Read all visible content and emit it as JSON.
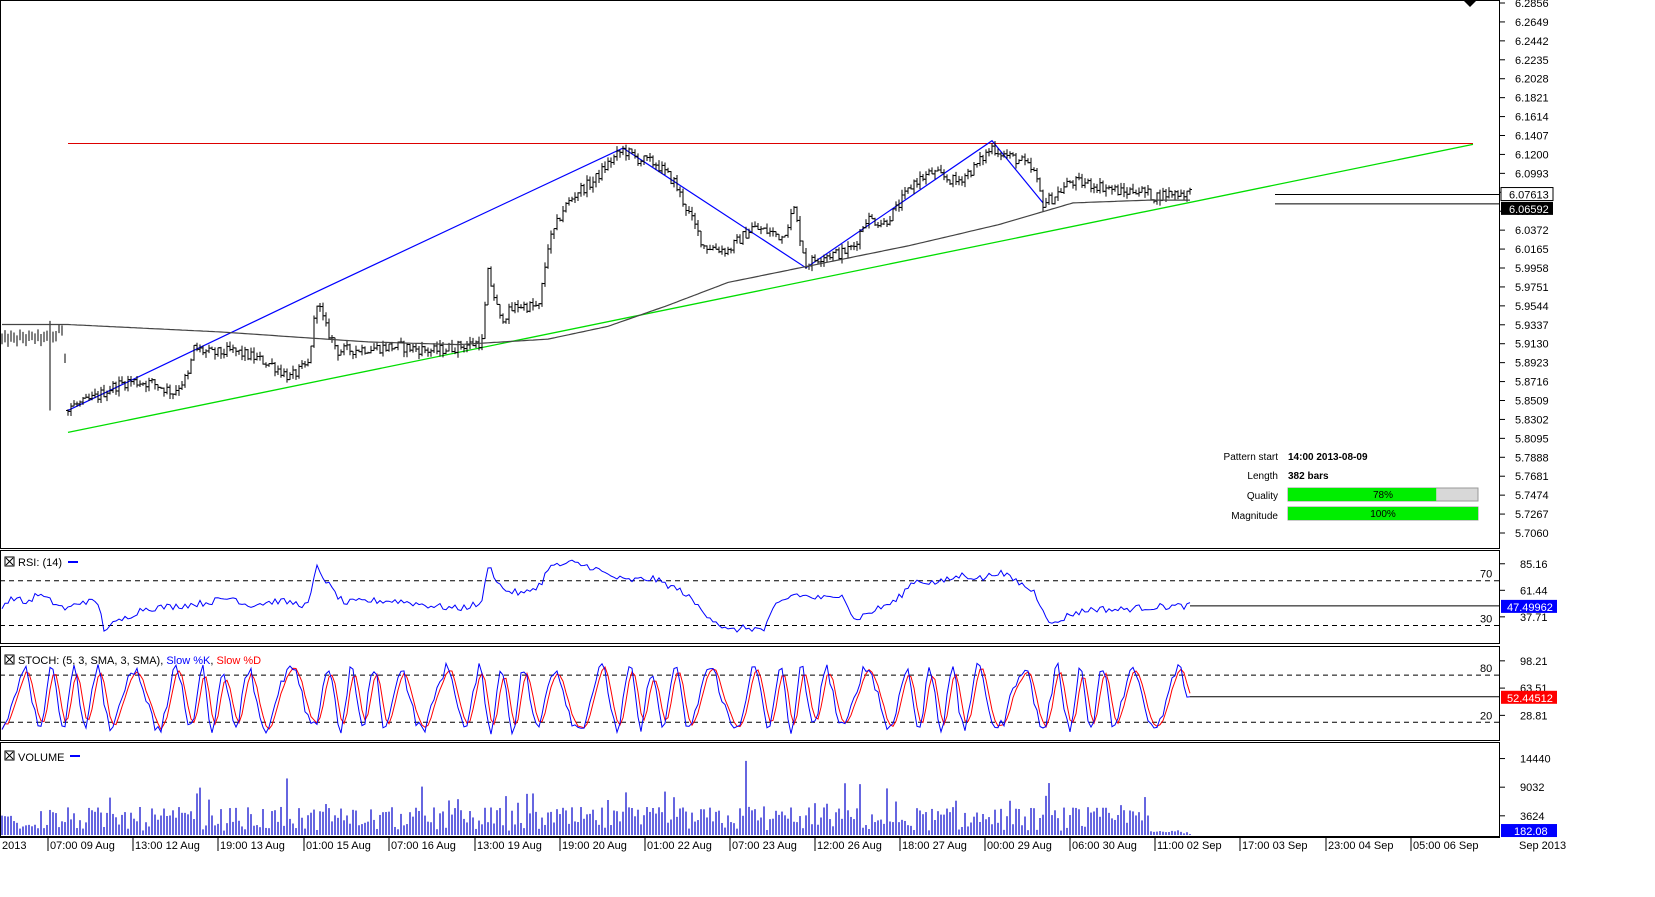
{
  "chart_data": {
    "type": "candlestick-pattern",
    "price_axis": {
      "ticks": [
        "6.2856",
        "6.2649",
        "6.2442",
        "6.2235",
        "6.2028",
        "6.1821",
        "6.1614",
        "6.1407",
        "6.1200",
        "6.0993",
        "6.0786",
        "6.0579",
        "6.0372",
        "6.0165",
        "5.9958",
        "5.9751",
        "5.9544",
        "5.9337",
        "5.9130",
        "5.8923",
        "5.8716",
        "5.8509",
        "5.8302",
        "5.8095",
        "5.7888",
        "5.7681",
        "5.7474",
        "5.7267",
        "5.7060"
      ],
      "min": 5.706,
      "max": 6.2856,
      "current_label": "6.07613",
      "second_label": "6.06592",
      "current_value": 6.07613,
      "second_value": 6.06592
    },
    "time_axis": [
      "2013",
      "07:00 09 Aug",
      "13:00 12 Aug",
      "19:00 13 Aug",
      "01:00 15 Aug",
      "07:00 16 Aug",
      "13:00 19 Aug",
      "19:00 20 Aug",
      "01:00 22 Aug",
      "07:00 23 Aug",
      "12:00 26 Aug",
      "18:00 27 Aug",
      "00:00 29 Aug",
      "06:00 30 Aug",
      "11:00 02 Sep",
      "17:00 03 Sep",
      "23:00 04 Sep",
      "05:00 06 Sep",
      "Sep 2013"
    ],
    "pattern": {
      "resistance_level": 6.132,
      "support_line": {
        "start_bar": 0,
        "start_value": 5.816,
        "end_bar": 382,
        "end_value": 6.131
      },
      "zigzag": [
        {
          "bar": 0,
          "value": 5.84
        },
        {
          "bar": 83,
          "value": 5.97
        },
        {
          "bar": 185,
          "value": 6.127
        },
        {
          "bar": 246,
          "value": 5.996
        },
        {
          "bar": 308,
          "value": 6.135
        },
        {
          "bar": 325,
          "value": 6.067
        }
      ],
      "info": {
        "pattern_start_label": "Pattern start",
        "pattern_start_value": "14:00 2013-08-09",
        "length_label": "Length",
        "length_value": "382 bars",
        "quality_label": "Quality",
        "quality_text": "78%",
        "quality": 0.78,
        "magnitude_label": "Magnitude",
        "magnitude_text": "100%",
        "magnitude": 1.0
      }
    },
    "price_keypoints": [
      [
        0,
        5.84
      ],
      [
        1,
        5.845
      ],
      [
        5,
        5.848
      ],
      [
        10,
        5.856
      ],
      [
        15,
        5.866
      ],
      [
        20,
        5.872
      ],
      [
        28,
        5.87
      ],
      [
        35,
        5.86
      ],
      [
        40,
        5.878
      ],
      [
        42,
        5.908
      ],
      [
        48,
        5.902
      ],
      [
        55,
        5.905
      ],
      [
        62,
        5.898
      ],
      [
        68,
        5.89
      ],
      [
        74,
        5.876
      ],
      [
        80,
        5.89
      ],
      [
        83,
        5.96
      ],
      [
        86,
        5.93
      ],
      [
        90,
        5.905
      ],
      [
        100,
        5.908
      ],
      [
        110,
        5.91
      ],
      [
        122,
        5.905
      ],
      [
        130,
        5.91
      ],
      [
        138,
        5.915
      ],
      [
        140,
        5.99
      ],
      [
        144,
        5.94
      ],
      [
        150,
        5.955
      ],
      [
        157,
        5.953
      ],
      [
        160,
        6.02
      ],
      [
        165,
        6.06
      ],
      [
        170,
        6.08
      ],
      [
        175,
        6.09
      ],
      [
        180,
        6.11
      ],
      [
        185,
        6.125
      ],
      [
        190,
        6.115
      ],
      [
        196,
        6.11
      ],
      [
        202,
        6.09
      ],
      [
        207,
        6.055
      ],
      [
        212,
        6.02
      ],
      [
        220,
        6.015
      ],
      [
        228,
        6.04
      ],
      [
        234,
        6.035
      ],
      [
        238,
        6.03
      ],
      [
        242,
        6.06
      ],
      [
        246,
        6.0
      ],
      [
        252,
        6.01
      ],
      [
        258,
        6.012
      ],
      [
        262,
        6.02
      ],
      [
        266,
        6.05
      ],
      [
        272,
        6.045
      ],
      [
        276,
        6.06
      ],
      [
        282,
        6.09
      ],
      [
        288,
        6.1
      ],
      [
        296,
        6.09
      ],
      [
        302,
        6.105
      ],
      [
        308,
        6.128
      ],
      [
        312,
        6.12
      ],
      [
        318,
        6.112
      ],
      [
        322,
        6.1
      ],
      [
        325,
        6.067
      ],
      [
        328,
        6.072
      ],
      [
        334,
        6.09
      ],
      [
        340,
        6.088
      ],
      [
        346,
        6.084
      ],
      [
        352,
        6.078
      ],
      [
        356,
        6.082
      ],
      [
        362,
        6.074
      ],
      [
        368,
        6.078
      ],
      [
        374,
        6.078
      ]
    ],
    "sma": [
      [
        0,
        5.934
      ],
      [
        50,
        5.926
      ],
      [
        100,
        5.915
      ],
      [
        130,
        5.912
      ],
      [
        160,
        5.918
      ],
      [
        180,
        5.932
      ],
      [
        200,
        5.955
      ],
      [
        220,
        5.98
      ],
      [
        250,
        6.0
      ],
      [
        280,
        6.02
      ],
      [
        310,
        6.043
      ],
      [
        335,
        6.067
      ],
      [
        360,
        6.07
      ],
      [
        374,
        6.07
      ]
    ],
    "rsi": {
      "label": "RSI: (14)",
      "ticks": [
        "85.16",
        "61.44",
        "37.71"
      ],
      "levels": [
        "70",
        "30"
      ],
      "level_values": [
        70,
        30
      ],
      "min": 17.0,
      "max": 93.0,
      "current_label": "47.49962",
      "current_value": 47.49962,
      "keypoints": [
        [
          0,
          45
        ],
        [
          5,
          52
        ],
        [
          10,
          50
        ],
        [
          12,
          27
        ],
        [
          18,
          35
        ],
        [
          25,
          45
        ],
        [
          35,
          47
        ],
        [
          45,
          50
        ],
        [
          55,
          55
        ],
        [
          60,
          48
        ],
        [
          70,
          52
        ],
        [
          80,
          48
        ],
        [
          83,
          82
        ],
        [
          88,
          62
        ],
        [
          92,
          50
        ],
        [
          100,
          52
        ],
        [
          110,
          52
        ],
        [
          120,
          48
        ],
        [
          130,
          45
        ],
        [
          138,
          50
        ],
        [
          140,
          84
        ],
        [
          145,
          62
        ],
        [
          152,
          58
        ],
        [
          158,
          68
        ],
        [
          160,
          82
        ],
        [
          168,
          86
        ],
        [
          175,
          82
        ],
        [
          180,
          75
        ],
        [
          186,
          70
        ],
        [
          195,
          72
        ],
        [
          205,
          60
        ],
        [
          212,
          42
        ],
        [
          220,
          25
        ],
        [
          226,
          28
        ],
        [
          232,
          26
        ],
        [
          236,
          48
        ],
        [
          242,
          58
        ],
        [
          248,
          55
        ],
        [
          255,
          54
        ],
        [
          258,
          60
        ],
        [
          262,
          35
        ],
        [
          270,
          45
        ],
        [
          276,
          52
        ],
        [
          282,
          70
        ],
        [
          290,
          68
        ],
        [
          298,
          75
        ],
        [
          305,
          72
        ],
        [
          310,
          78
        ],
        [
          316,
          70
        ],
        [
          322,
          60
        ],
        [
          328,
          30
        ],
        [
          334,
          40
        ],
        [
          342,
          45
        ],
        [
          350,
          44
        ],
        [
          358,
          46
        ],
        [
          366,
          47
        ],
        [
          374,
          47.5
        ]
      ],
      "color": "#0000ff"
    },
    "stoch": {
      "label_prefix": "STOCH: (5, 3, SMA, 3, SMA),",
      "slow_k_label": "Slow %K",
      "slow_d_label": "Slow %D",
      "slow_k_color": "#0000ff",
      "slow_d_color": "#ff0000",
      "ticks": [
        "98.21",
        "63.51",
        "28.81"
      ],
      "levels": [
        "80",
        "20"
      ],
      "level_values": [
        80,
        20
      ],
      "min": 0,
      "max": 112,
      "current_label": "52.44512",
      "current_value": 52.44512
    },
    "volume": {
      "label": "VOLUME",
      "ticks": [
        "14440",
        "9032",
        "3624"
      ],
      "max": 17000,
      "current_label": "182.08",
      "current_value": 182.08,
      "color": "#0000cc"
    }
  }
}
